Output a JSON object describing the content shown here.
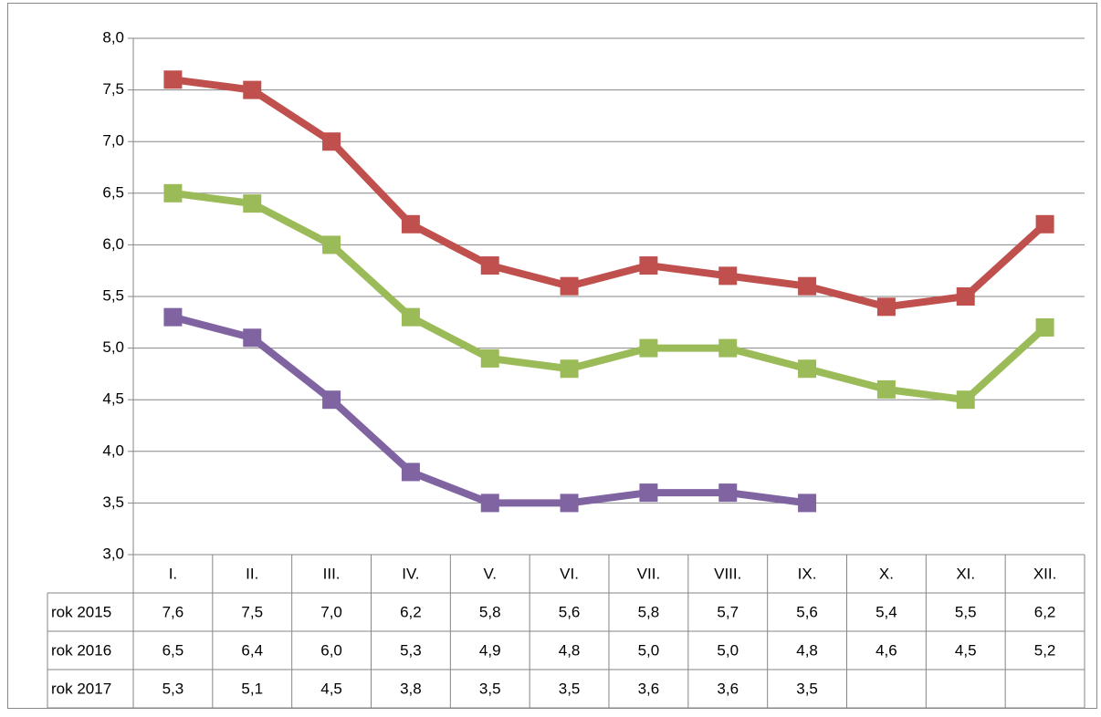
{
  "chart_data": {
    "type": "line",
    "categories": [
      "I.",
      "II.",
      "III.",
      "IV.",
      "V.",
      "VI.",
      "VII.",
      "VIII.",
      "IX.",
      "X.",
      "XI.",
      "XII."
    ],
    "series": [
      {
        "name": "rok 2015",
        "color": "#c0504d",
        "values": [
          7.6,
          7.5,
          7.0,
          6.2,
          5.8,
          5.6,
          5.8,
          5.7,
          5.6,
          5.4,
          5.5,
          6.2
        ],
        "value_labels": [
          "7,6",
          "7,5",
          "7,0",
          "6,2",
          "5,8",
          "5,6",
          "5,8",
          "5,7",
          "5,6",
          "5,4",
          "5,5",
          "6,2"
        ]
      },
      {
        "name": "rok 2016",
        "color": "#9bbb59",
        "values": [
          6.5,
          6.4,
          6.0,
          5.3,
          4.9,
          4.8,
          5.0,
          5.0,
          4.8,
          4.6,
          4.5,
          5.2
        ],
        "value_labels": [
          "6,5",
          "6,4",
          "6,0",
          "5,3",
          "4,9",
          "4,8",
          "5,0",
          "5,0",
          "4,8",
          "4,6",
          "4,5",
          "5,2"
        ]
      },
      {
        "name": "rok 2017",
        "color": "#8064a2",
        "values": [
          5.3,
          5.1,
          4.5,
          3.8,
          3.5,
          3.5,
          3.6,
          3.6,
          3.5,
          null,
          null,
          null
        ],
        "value_labels": [
          "5,3",
          "5,1",
          "4,5",
          "3,8",
          "3,5",
          "3,5",
          "3,6",
          "3,6",
          "3,5",
          null,
          null,
          null
        ]
      }
    ],
    "ylim": [
      3,
      8
    ],
    "yticks": [
      {
        "value": 3,
        "label": "3,0"
      },
      {
        "value": 3.5,
        "label": "3,5"
      },
      {
        "value": 4,
        "label": "4,0"
      },
      {
        "value": 4.5,
        "label": "4,5"
      },
      {
        "value": 5,
        "label": "5,0"
      },
      {
        "value": 5.5,
        "label": "5,5"
      },
      {
        "value": 6,
        "label": "6,0"
      },
      {
        "value": 6.5,
        "label": "6,5"
      },
      {
        "value": 7,
        "label": "7,0"
      },
      {
        "value": 7.5,
        "label": "7,5"
      },
      {
        "value": 8,
        "label": "8,0"
      }
    ],
    "grid": true
  }
}
